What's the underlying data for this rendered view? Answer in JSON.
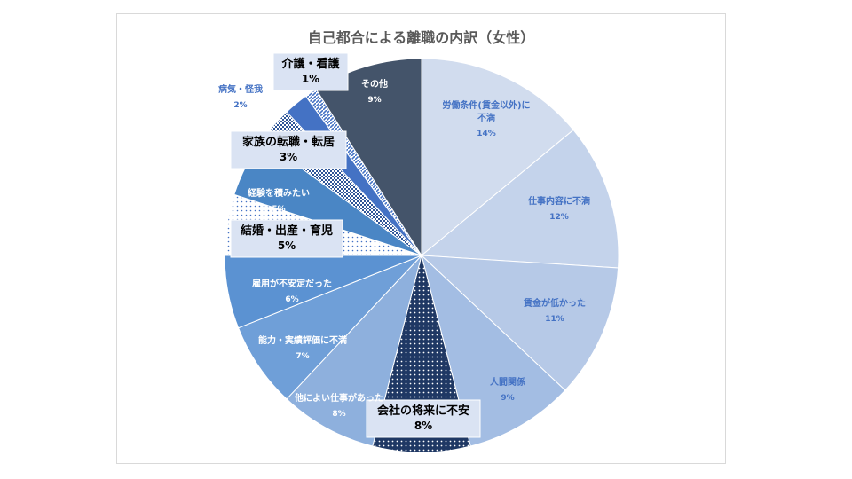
{
  "chart_data": {
    "type": "pie",
    "title": "自己都合による離職の内訳（女性）",
    "slices": [
      {
        "name": "労働条件(賃金以外)に不満",
        "value": 14,
        "label": "14%",
        "color": "#d1dcee",
        "pattern": "solid",
        "label_color": "#4472c4",
        "highlight": false
      },
      {
        "name": "仕事内容に不満",
        "value": 12,
        "label": "12%",
        "color": "#c4d3eb",
        "pattern": "solid",
        "label_color": "#4472c4",
        "highlight": false
      },
      {
        "name": "賃金が低かった",
        "value": 11,
        "label": "11%",
        "color": "#b6c9e7",
        "pattern": "solid",
        "label_color": "#4472c4",
        "highlight": false
      },
      {
        "name": "人間関係",
        "value": 9,
        "label": "9%",
        "color": "#a3bde3",
        "pattern": "solid",
        "label_color": "#4472c4",
        "highlight": false
      },
      {
        "name": "会社の将来に不安",
        "value": 8,
        "label": "8%",
        "color": "#1f3864",
        "pattern": "dots-dark",
        "label_color": "#000000",
        "highlight": true
      },
      {
        "name": "他によい仕事があった",
        "value": 8,
        "label": "8%",
        "color": "#8eb0dd",
        "pattern": "solid",
        "label_color": "#ffffff",
        "highlight": false
      },
      {
        "name": "能力・実績評価に不満",
        "value": 7,
        "label": "7%",
        "color": "#6f9fd8",
        "pattern": "solid",
        "label_color": "#ffffff",
        "highlight": false
      },
      {
        "name": "雇用が不安定だった",
        "value": 6,
        "label": "6%",
        "color": "#5b92d2",
        "pattern": "solid",
        "label_color": "#ffffff",
        "highlight": false
      },
      {
        "name": "結婚・出産・育児",
        "value": 5,
        "label": "5%",
        "color": "#ffffff",
        "pattern": "dots-light",
        "label_color": "#000000",
        "highlight": true
      },
      {
        "name": "経験を積みたい",
        "value": 5,
        "label": "5%",
        "color": "#4a86c5",
        "pattern": "solid",
        "label_color": "#ffffff",
        "highlight": false
      },
      {
        "name": "家族の転職・転居",
        "value": 3,
        "label": "3%",
        "color": "#2f5597",
        "pattern": "checker",
        "label_color": "#000000",
        "highlight": true
      },
      {
        "name": "病気・怪我",
        "value": 2,
        "label": "2%",
        "color": "#4472c4",
        "pattern": "solid",
        "label_color": "#4472c4",
        "highlight": false
      },
      {
        "name": "介護・看護",
        "value": 1,
        "label": "1%",
        "color": "#4472c4",
        "pattern": "diag",
        "label_color": "#000000",
        "highlight": true
      },
      {
        "name": "その他",
        "value": 9,
        "label": "9%",
        "color": "#44546a",
        "pattern": "solid",
        "label_color": "#ffffff",
        "highlight": false
      }
    ],
    "start_angle_deg": 0,
    "direction": "clockwise",
    "legend": "none"
  }
}
